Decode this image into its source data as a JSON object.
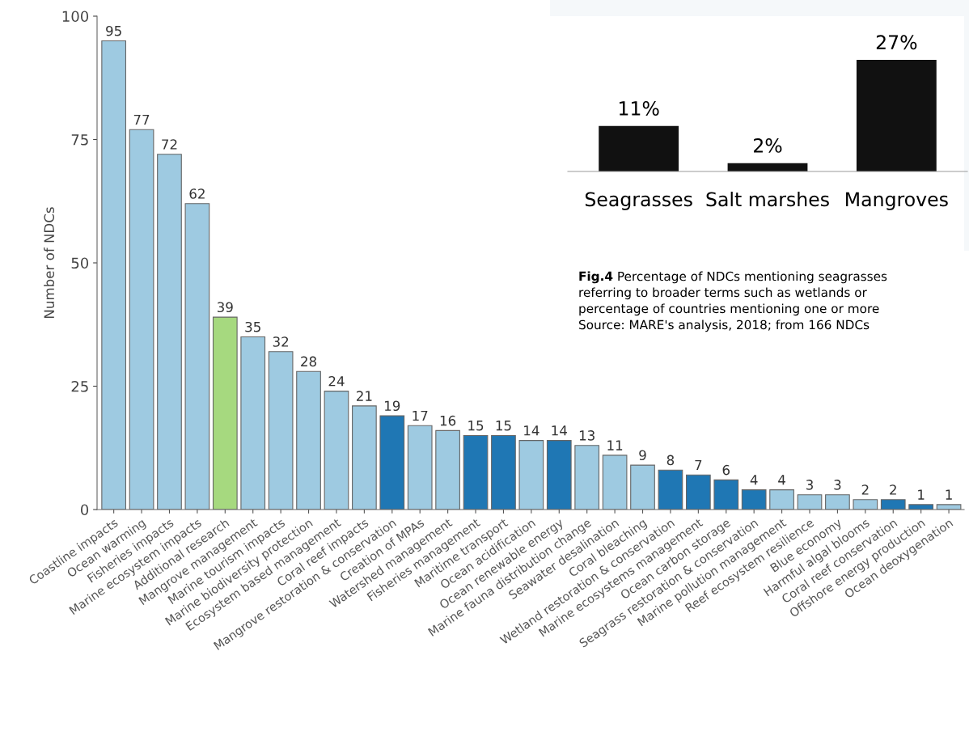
{
  "chart_data": [
    {
      "type": "bar",
      "ylabel": "Number of NDCs",
      "categories": [
        "Coastline impacts",
        "Ocean warming",
        "Fisheries impacts",
        "Marine ecosystem impacts",
        "Additional research",
        "Mangrove management",
        "Marine tourism impacts",
        "Marine biodiversity protection",
        "Ecosystem based management",
        "Coral reef impacts",
        "Mangrove restoration & conservation",
        "Creation of MPAs",
        "Watershed management",
        "Fisheries management",
        "Maritime transport",
        "Ocean acidification",
        "Ocean renewable energy",
        "Marine fauna distribution change",
        "Seawater desalination",
        "Coral bleaching",
        "Wetland restoration & conservation",
        "Marine ecosystems management",
        "Ocean carbon storage",
        "Seagrass restoration & conservation",
        "Marine pollution management",
        "Reef ecosystem resilience",
        "Blue economy",
        "Harmful algal blooms",
        "Coral reef conservation",
        "Offshore energy production",
        "Ocean deoxygenation"
      ],
      "values": [
        95,
        77,
        72,
        62,
        39,
        35,
        32,
        28,
        24,
        21,
        19,
        17,
        16,
        15,
        15,
        14,
        14,
        13,
        11,
        9,
        8,
        7,
        6,
        4,
        4,
        3,
        3,
        2,
        2,
        1,
        1
      ],
      "colors": [
        "#9ecae1",
        "#9ecae1",
        "#9ecae1",
        "#9ecae1",
        "#a6d97f",
        "#9ecae1",
        "#9ecae1",
        "#9ecae1",
        "#9ecae1",
        "#9ecae1",
        "#1f77b4",
        "#9ecae1",
        "#9ecae1",
        "#1f77b4",
        "#1f77b4",
        "#9ecae1",
        "#1f77b4",
        "#9ecae1",
        "#9ecae1",
        "#9ecae1",
        "#1f77b4",
        "#1f77b4",
        "#1f77b4",
        "#1f77b4",
        "#9ecae1",
        "#9ecae1",
        "#9ecae1",
        "#9ecae1",
        "#1f77b4",
        "#1f77b4",
        "#9ecae1"
      ],
      "ylim": [
        0,
        100
      ],
      "yticks": [
        0,
        25,
        50,
        75,
        100
      ],
      "data_labels": true,
      "grid": false,
      "legend": false
    },
    {
      "type": "bar",
      "categories": [
        "Seagrasses",
        "Salt marshes",
        "Mangroves"
      ],
      "values": [
        11,
        2,
        27
      ],
      "value_labels": [
        "11%",
        "2%",
        "27%"
      ],
      "color": "#111111",
      "annotations": [
        "Fig.4",
        "Percentage of NDCs mentioning seagrasses",
        "referring to broader terms such as wetlands or",
        "percentage of countries mentioning one or more",
        "Source: MARE's analysis, 2018; from 166 NDCs"
      ]
    }
  ]
}
